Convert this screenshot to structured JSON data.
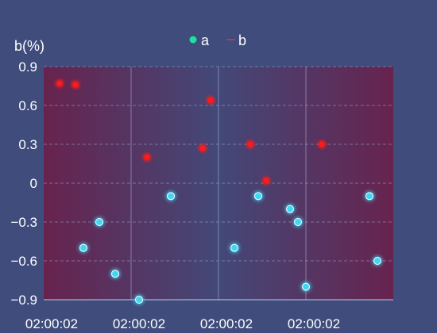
{
  "chart_data": {
    "type": "scatter",
    "ylabel": "b(%)",
    "ylim": [
      -0.9,
      0.9
    ],
    "yticks": [
      {
        "value": 0.9,
        "label": "0.9"
      },
      {
        "value": 0.6,
        "label": "0.6"
      },
      {
        "value": 0.3,
        "label": "0.3"
      },
      {
        "value": 0,
        "label": "0"
      },
      {
        "value": -0.3,
        "label": "−0.3"
      },
      {
        "value": -0.6,
        "label": "−0.6"
      },
      {
        "value": -0.9,
        "label": "−0.9"
      }
    ],
    "xlim": [
      0,
      22
    ],
    "xtick_labels": [
      {
        "pos": 0,
        "label": "02:00:02"
      },
      {
        "pos": 5.5,
        "label": "02:00:02"
      },
      {
        "pos": 11,
        "label": "02:00:02"
      },
      {
        "pos": 16.5,
        "label": "02:00:02"
      }
    ],
    "x_grid": [
      5.5,
      11,
      16.5
    ],
    "legend": {
      "placement": "top-center"
    },
    "series": [
      {
        "name": "a",
        "color": "#3cd8f4",
        "legend_color": "#1fe0a0",
        "points": [
          {
            "x": 2.5,
            "y": -0.5
          },
          {
            "x": 3.5,
            "y": -0.3
          },
          {
            "x": 4.5,
            "y": -0.7
          },
          {
            "x": 6.0,
            "y": -0.9
          },
          {
            "x": 8.0,
            "y": -0.1
          },
          {
            "x": 12.0,
            "y": -0.5
          },
          {
            "x": 13.5,
            "y": -0.1
          },
          {
            "x": 15.5,
            "y": -0.2
          },
          {
            "x": 16.0,
            "y": -0.3
          },
          {
            "x": 16.5,
            "y": -0.8
          },
          {
            "x": 20.5,
            "y": -0.1
          },
          {
            "x": 21.0,
            "y": -0.6
          }
        ]
      },
      {
        "name": "b",
        "color": "#ff1a1a",
        "legend_color": "#d23a3a",
        "points": [
          {
            "x": 1.0,
            "y": 0.77
          },
          {
            "x": 2.0,
            "y": 0.76
          },
          {
            "x": 6.5,
            "y": 0.2
          },
          {
            "x": 10.0,
            "y": 0.27
          },
          {
            "x": 10.5,
            "y": 0.64
          },
          {
            "x": 13.0,
            "y": 0.3
          },
          {
            "x": 14.0,
            "y": 0.02
          },
          {
            "x": 17.5,
            "y": 0.3
          }
        ]
      }
    ]
  }
}
